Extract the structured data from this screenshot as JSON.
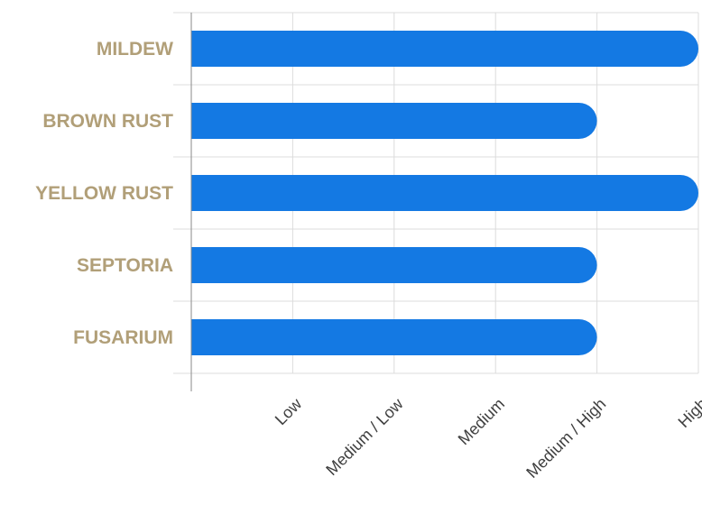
{
  "chart_data": {
    "type": "bar",
    "orientation": "horizontal",
    "categories": [
      "MILDEW",
      "BROWN RUST",
      "YELLOW RUST",
      "SEPTORIA",
      "FUSARIUM"
    ],
    "values": [
      5,
      4,
      5,
      4,
      4
    ],
    "xlim": [
      0,
      5
    ],
    "x_ticks": [
      {
        "value": 1,
        "label": "Low"
      },
      {
        "value": 2,
        "label": "Medium / Low"
      },
      {
        "value": 3,
        "label": "Medium"
      },
      {
        "value": 4,
        "label": "Medium / High"
      },
      {
        "value": 5,
        "label": "High"
      }
    ],
    "title": "",
    "xlabel": "",
    "ylabel": "",
    "grid": true,
    "legend": "none",
    "colors": {
      "bar": "#1479e3",
      "category_label": "#b19f78",
      "tick_label": "#404040",
      "grid": "#dcdcdc"
    }
  }
}
